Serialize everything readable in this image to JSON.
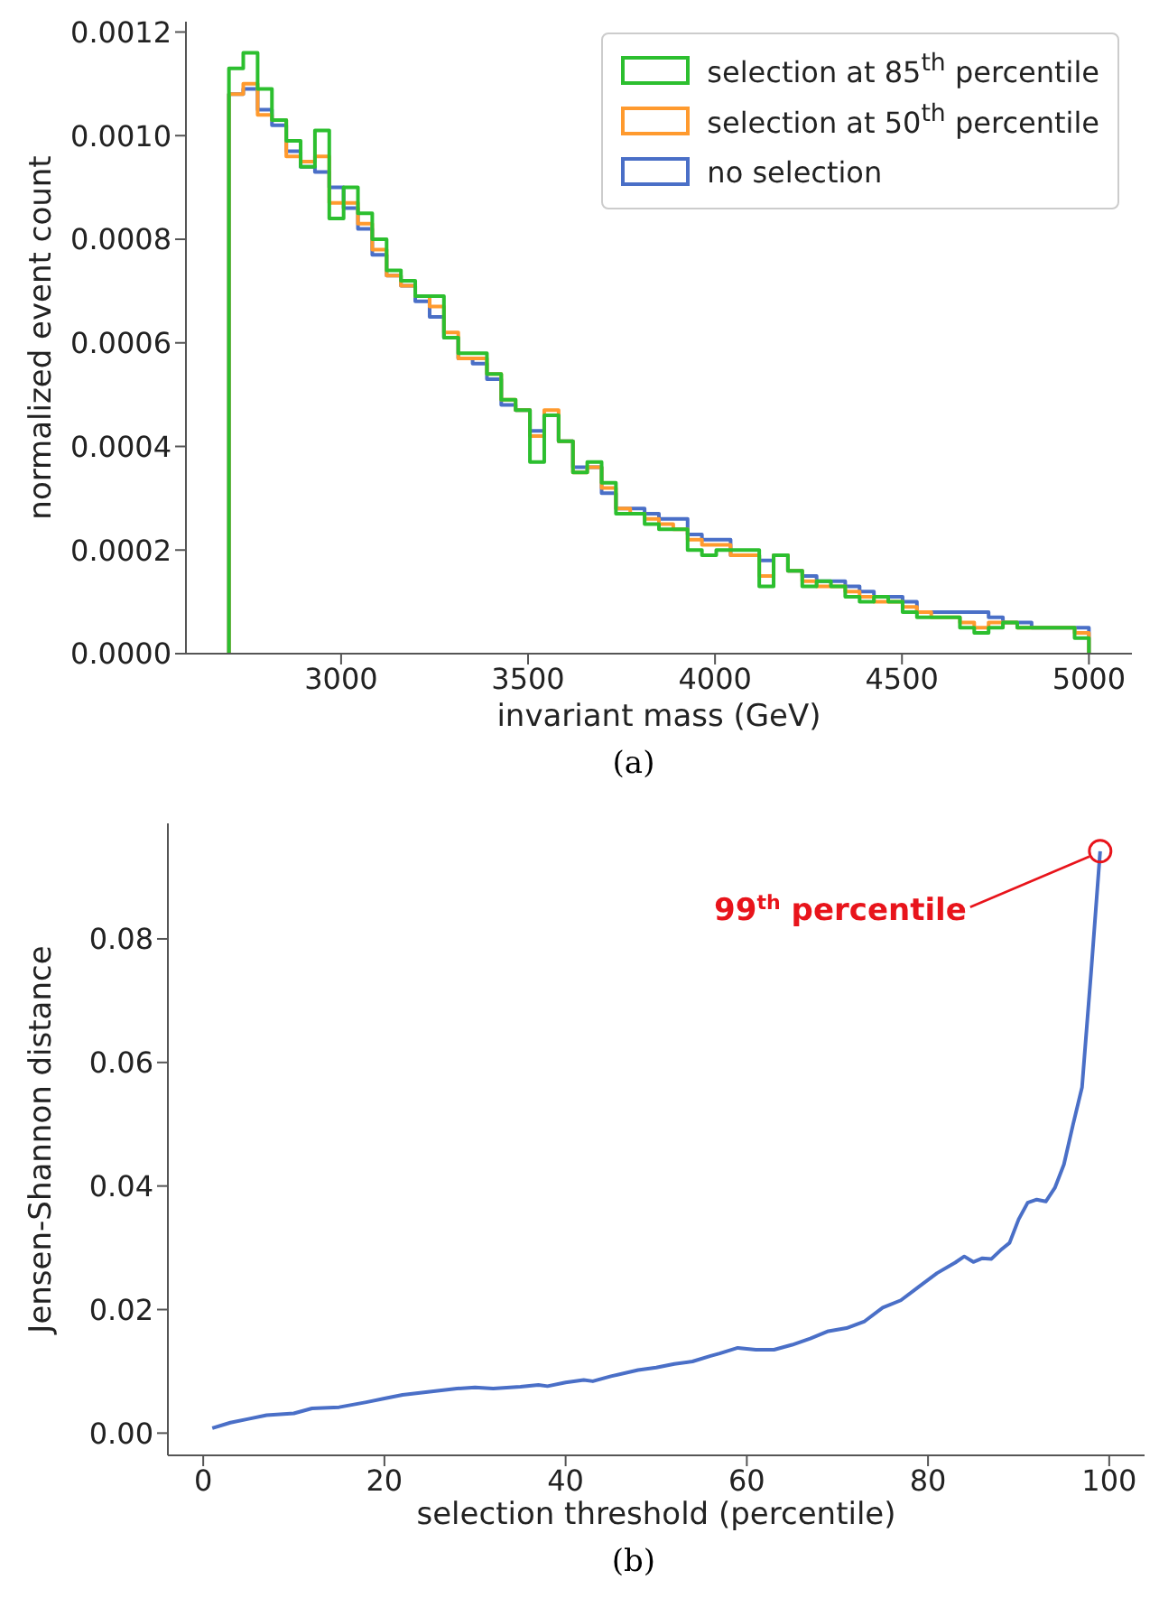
{
  "chart_data": [
    {
      "type": "histogram",
      "xlabel": "invariant mass (GeV)",
      "ylabel": "normalized event count",
      "annotations": [
        "(a)"
      ],
      "bins": [
        2700,
        2738.3,
        2776.7,
        2815,
        2853.3,
        2891.7,
        2930,
        2968.3,
        3006.7,
        3045,
        3083.3,
        3121.7,
        3160,
        3198.3,
        3236.7,
        3275,
        3313.3,
        3351.7,
        3390,
        3428.3,
        3466.7,
        3505,
        3543.3,
        3581.7,
        3620,
        3658.3,
        3696.7,
        3735,
        3773.3,
        3811.7,
        3850,
        3888.3,
        3926.7,
        3965,
        4003.3,
        4041.7,
        4080,
        4118.3,
        4156.7,
        4195,
        4233.3,
        4271.7,
        4310,
        4348.3,
        4386.7,
        4425,
        4463.3,
        4501.7,
        4540,
        4578.3,
        4616.7,
        4655,
        4693.3,
        4731.7,
        4770,
        4808.3,
        4846.7,
        4885,
        4923.3,
        4961.7,
        5000
      ],
      "series": [
        {
          "name": "selection at 85$^{th}$ percentile",
          "color": "#2cbf2f",
          "values": [
            0.00113,
            0.00116,
            0.00109,
            0.00103,
            0.00099,
            0.00094,
            0.00101,
            0.00084,
            0.0009,
            0.00085,
            0.0008,
            0.00074,
            0.00072,
            0.00069,
            0.00069,
            0.00061,
            0.00058,
            0.00058,
            0.00054,
            0.00049,
            0.00047,
            0.00037,
            0.00046,
            0.00041,
            0.00035,
            0.00037,
            0.00033,
            0.00027,
            0.00027,
            0.00025,
            0.00024,
            0.00024,
            0.0002,
            0.00019,
            0.0002,
            0.0002,
            0.0002,
            0.00013,
            0.00019,
            0.00016,
            0.00013,
            0.00014,
            0.00013,
            0.00011,
            0.0001,
            0.00011,
            0.0001,
            8e-05,
            7e-05,
            7e-05,
            7e-05,
            5e-05,
            4e-05,
            5e-05,
            6e-05,
            5e-05,
            5e-05,
            5e-05,
            5e-05,
            3e-05
          ]
        },
        {
          "name": "selection at 50$^{th}$ percentile",
          "color": "#ff9a2e",
          "values": [
            0.00108,
            0.0011,
            0.00104,
            0.00103,
            0.00096,
            0.00095,
            0.00096,
            0.00087,
            0.00087,
            0.00083,
            0.00078,
            0.00073,
            0.00071,
            0.00069,
            0.00067,
            0.00062,
            0.00057,
            0.00057,
            0.00054,
            0.00049,
            0.00047,
            0.00042,
            0.00047,
            0.00041,
            0.00035,
            0.00036,
            0.00032,
            0.00028,
            0.00027,
            0.00026,
            0.00025,
            0.00024,
            0.00022,
            0.00021,
            0.00021,
            0.00019,
            0.00019,
            0.00015,
            0.00019,
            0.00016,
            0.00014,
            0.00013,
            0.00013,
            0.00012,
            0.00011,
            0.0001,
            0.0001,
            9e-05,
            8e-05,
            7e-05,
            7e-05,
            6e-05,
            5e-05,
            6e-05,
            6e-05,
            5e-05,
            5e-05,
            5e-05,
            5e-05,
            4e-05
          ]
        },
        {
          "name": "no selection",
          "color": "#4a6fc7",
          "values": [
            0.00108,
            0.00109,
            0.00105,
            0.00102,
            0.00097,
            0.00094,
            0.00093,
            0.0009,
            0.00086,
            0.00082,
            0.00077,
            0.00073,
            0.00071,
            0.00068,
            0.00065,
            0.00061,
            0.00057,
            0.00056,
            0.00053,
            0.00048,
            0.00047,
            0.00043,
            0.00046,
            0.00041,
            0.00036,
            0.00036,
            0.00031,
            0.00028,
            0.00028,
            0.00027,
            0.00026,
            0.00026,
            0.00023,
            0.00022,
            0.00022,
            0.00019,
            0.00019,
            0.00018,
            0.00019,
            0.00016,
            0.00015,
            0.00014,
            0.00014,
            0.00013,
            0.00012,
            0.00011,
            0.00011,
            0.0001,
            8e-05,
            8e-05,
            8e-05,
            8e-05,
            8e-05,
            7e-05,
            6e-05,
            6e-05,
            5e-05,
            5e-05,
            5e-05,
            5e-05
          ]
        }
      ],
      "xlim": [
        2585,
        5115
      ],
      "xticks": [
        3000,
        3500,
        4000,
        4500,
        5000
      ],
      "ylim": [
        0,
        0.00122
      ],
      "yticks": [
        {
          "value": 0,
          "label": "0.0000"
        },
        {
          "value": 0.0002,
          "label": "0.0002"
        },
        {
          "value": 0.0004,
          "label": "0.0004"
        },
        {
          "value": 0.0006,
          "label": "0.0006"
        },
        {
          "value": 0.0008,
          "label": "0.0008"
        },
        {
          "value": 0.001,
          "label": "0.0010"
        },
        {
          "value": 0.0012,
          "label": "0.0012"
        }
      ],
      "legend": "top right",
      "grid": false
    },
    {
      "type": "line",
      "xlabel": "selection threshold (percentile)",
      "ylabel": "Jensen-Shannon distance",
      "annotations": [
        {
          "text": "99$^{th}$ percentile",
          "x": 99,
          "y": 0.0942
        },
        "(b)"
      ],
      "x": [
        1,
        3,
        5,
        7,
        10,
        12,
        15,
        18,
        20,
        22,
        25,
        28,
        30,
        32,
        35,
        37,
        38,
        40,
        42,
        43,
        45,
        48,
        50,
        52,
        54,
        56,
        57,
        59,
        61,
        63,
        65,
        67,
        69,
        71,
        73,
        75,
        77,
        79,
        81,
        83,
        84,
        85,
        86,
        87,
        88,
        89,
        90,
        91,
        92,
        93,
        94,
        95,
        96,
        97,
        98,
        99
      ],
      "series": [
        {
          "color": "#4a6fc7",
          "values": [
            0.0008,
            0.0017,
            0.0023,
            0.0029,
            0.0032,
            0.004,
            0.0042,
            0.005,
            0.0056,
            0.0062,
            0.0067,
            0.0072,
            0.0074,
            0.0072,
            0.0075,
            0.0078,
            0.0076,
            0.0082,
            0.0086,
            0.0084,
            0.0092,
            0.0102,
            0.0106,
            0.0112,
            0.0116,
            0.0125,
            0.0129,
            0.0138,
            0.0135,
            0.0135,
            0.0143,
            0.0153,
            0.0165,
            0.017,
            0.0181,
            0.0203,
            0.0215,
            0.0237,
            0.0259,
            0.0276,
            0.0286,
            0.0277,
            0.0283,
            0.0282,
            0.0296,
            0.0308,
            0.0346,
            0.0373,
            0.0378,
            0.0375,
            0.0397,
            0.0435,
            0.0499,
            0.056,
            0.0746,
            0.0942
          ]
        }
      ],
      "xlim": [
        -3.9,
        103.9
      ],
      "xticks": [
        0,
        20,
        40,
        60,
        80,
        100
      ],
      "ylim": [
        -0.0036,
        0.0987
      ],
      "yticks": [
        {
          "value": 0,
          "label": "0.00"
        },
        {
          "value": 0.02,
          "label": "0.02"
        },
        {
          "value": 0.04,
          "label": "0.04"
        },
        {
          "value": 0.06,
          "label": "0.06"
        },
        {
          "value": 0.08,
          "label": "0.08"
        }
      ],
      "legend": false,
      "grid": false,
      "line_style": "solid",
      "marker": "none"
    }
  ]
}
